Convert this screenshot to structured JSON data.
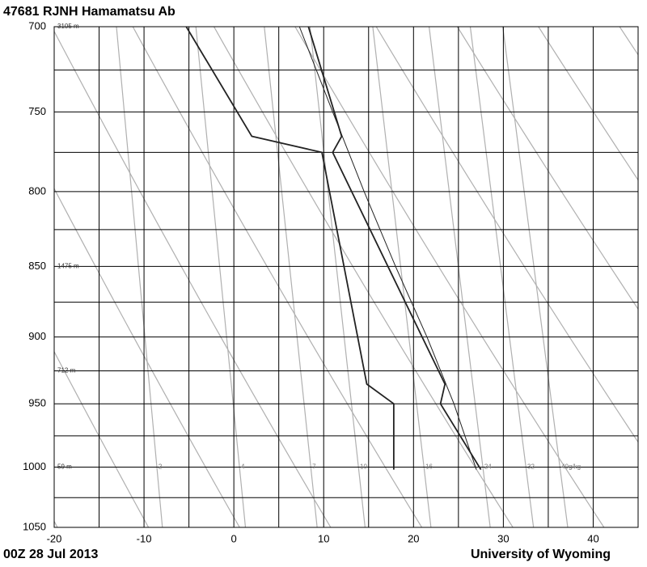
{
  "chart_data": {
    "type": "skewt",
    "title": "47681 RJNH Hamamatsu Ab",
    "date": "00Z 28 Jul 2013",
    "source": "University of Wyoming",
    "xlim": [
      -20,
      45
    ],
    "xticks": [
      -20,
      -10,
      0,
      10,
      20,
      30,
      40
    ],
    "x_minor_ticks": [
      -15,
      -5,
      5,
      15,
      25,
      35
    ],
    "ylim": [
      1050,
      700
    ],
    "yticks": [
      700,
      750,
      800,
      850,
      900,
      950,
      1000,
      1050
    ],
    "y_minor_ticks": [
      725,
      775,
      825,
      875,
      925,
      975,
      1025
    ],
    "log_y": true,
    "grid": true,
    "height_labels": [
      {
        "pressure": 700,
        "height": 3105,
        "label": "3105 m"
      },
      {
        "pressure": 850,
        "height": 1475,
        "label": "1475 m"
      },
      {
        "pressure": 925,
        "height": 712,
        "label": "712 m"
      },
      {
        "pressure": 1000,
        "height": 59,
        "label": "59 m"
      }
    ],
    "mixing_ratios": [
      2,
      4,
      7,
      10,
      16,
      24,
      32,
      {
        "value": 40,
        "label": "40g/kg"
      }
    ],
    "series": [
      {
        "color": "#222222",
        "line_width": 1.8,
        "pressure": [
          1002,
          950,
          935,
          775,
          765,
          700
        ],
        "temperature": [
          27.5,
          23,
          23.5,
          11,
          12,
          8.3
        ]
      },
      {
        "color": "#222222",
        "line_width": 1.8,
        "pressure": [
          1002,
          950,
          935,
          775,
          765,
          700
        ],
        "temperature": [
          17.8,
          17.8,
          14.8,
          9.8,
          2,
          -5.3
        ]
      },
      {
        "color": "#222222",
        "line_width": 1,
        "pressure": [
          1002,
          950,
          900,
          850,
          800,
          750,
          700
        ],
        "temperature": [
          27,
          24.5,
          21.5,
          18,
          14.5,
          11,
          7.3
        ]
      }
    ]
  }
}
